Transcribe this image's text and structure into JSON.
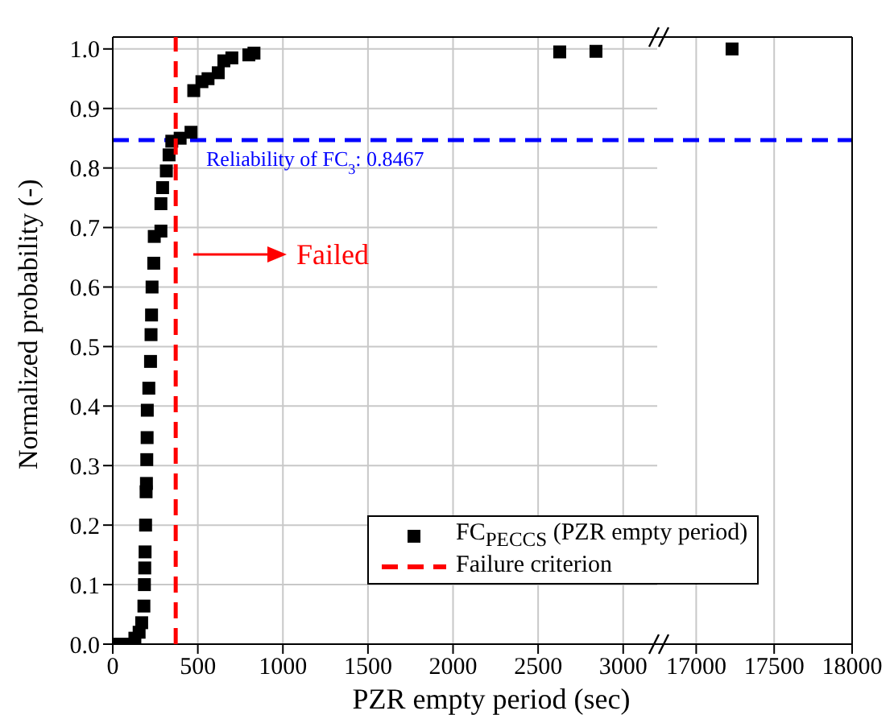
{
  "chart_data": [
    {
      "type": "scatter",
      "xlabel": "PZR empty period (sec)",
      "ylabel": "Normalized probability (-)",
      "xlim": [
        0,
        3200
      ],
      "xticks": [
        0,
        500,
        1000,
        1500,
        2000,
        2500,
        3000
      ],
      "ylim": [
        0,
        1.02
      ],
      "yticks": [
        {
          "value": 0,
          "label": "0.0"
        },
        0.1,
        0.2,
        0.3,
        0.4,
        0.5,
        0.6,
        0.7,
        0.8,
        0.9,
        {
          "value": 1,
          "label": "1.0"
        }
      ],
      "grid": true,
      "legend": "bottom right",
      "series": [
        {
          "name": "FC$_{PECCS}$ (PZR empty period)",
          "color": "#000000",
          "marker": "square",
          "x": [
            0,
            75,
            130,
            155,
            170,
            183,
            186,
            188,
            190,
            193,
            196,
            198,
            200,
            202,
            203,
            212,
            222,
            225,
            228,
            231,
            241,
            244,
            283,
            283,
            293,
            315,
            331,
            347,
            396,
            460,
            476,
            524,
            560,
            620,
            653,
            700,
            800,
            830,
            2627,
            2840
          ],
          "values": [
            0,
            0,
            0.01,
            0.02,
            0.036,
            0.064,
            0.1,
            0.128,
            0.155,
            0.2,
            0.256,
            0.27,
            0.31,
            0.347,
            0.393,
            0.43,
            0.475,
            0.52,
            0.553,
            0.6,
            0.64,
            0.685,
            0.694,
            0.74,
            0.767,
            0.795,
            0.822,
            0.845,
            0.85,
            0.86,
            0.93,
            0.945,
            0.95,
            0.96,
            0.98,
            0.985,
            0.99,
            0.993,
            0.995,
            0.996
          ]
        },
        {
          "type": "line",
          "name": "Failure criterion",
          "color": "#ff0000",
          "line_style": "dashed",
          "marker": "none",
          "x": [
            370,
            370
          ],
          "values": [
            0,
            1.02
          ]
        }
      ],
      "ref_lines": [
        {
          "axis": "y",
          "value": 0.8467,
          "label": "Reliability of FC$_{3}$: 0.8467",
          "color": "#0000ff",
          "line_style": "dashed"
        }
      ],
      "annotations": [
        "Failed"
      ]
    },
    {
      "type": "scatter",
      "xlim": [
        16750,
        18000
      ],
      "xticks": [
        17000,
        17500,
        18000
      ],
      "ylim": [
        0,
        1.02
      ],
      "yticks": [
        0,
        0.1,
        0.2,
        0.3,
        0.4,
        0.5,
        0.6,
        0.7,
        0.8,
        0.9,
        1
      ],
      "grid": true,
      "marker": "square",
      "tick_labels": "x",
      "series": [
        {
          "color": "#000000",
          "x": [
            17230
          ],
          "values": [
            1
          ]
        }
      ],
      "ref_lines": [
        {
          "axis": "y",
          "value": 0.8467,
          "color": "#0000ff",
          "line_style": "dashed"
        }
      ]
    }
  ]
}
